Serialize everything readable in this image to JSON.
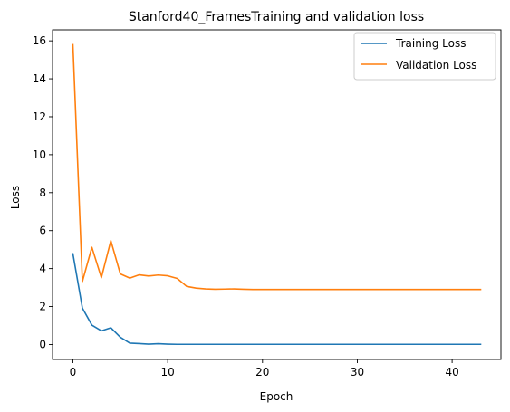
{
  "chart_data": {
    "type": "line",
    "title": "Stanford40_FramesTraining and validation loss",
    "xlabel": "Epoch",
    "ylabel": "Loss",
    "xlim": [
      -2.15,
      45.15
    ],
    "ylim": [
      -0.79,
      16.58
    ],
    "xticks": [
      0,
      10,
      20,
      30,
      40
    ],
    "yticks": [
      0,
      2,
      4,
      6,
      8,
      10,
      12,
      14,
      16
    ],
    "grid": false,
    "legend_position": "top-right",
    "series": [
      {
        "name": "Training Loss",
        "color": "#1f77b4",
        "x": [
          0,
          1,
          2,
          3,
          4,
          5,
          6,
          7,
          8,
          9,
          10,
          11,
          12,
          13,
          14,
          15,
          16,
          17,
          18,
          19,
          20,
          21,
          22,
          23,
          24,
          25,
          26,
          27,
          28,
          29,
          30,
          31,
          32,
          33,
          34,
          35,
          36,
          37,
          38,
          39,
          40,
          41,
          42,
          43
        ],
        "values": [
          4.78,
          1.92,
          1.02,
          0.72,
          0.88,
          0.38,
          0.07,
          0.05,
          0.02,
          0.04,
          0.02,
          0.01,
          0.01,
          0.01,
          0.01,
          0.01,
          0.01,
          0.01,
          0.01,
          0.01,
          0.01,
          0.01,
          0.01,
          0.01,
          0.01,
          0.01,
          0.01,
          0.01,
          0.01,
          0.01,
          0.01,
          0.01,
          0.01,
          0.01,
          0.01,
          0.01,
          0.01,
          0.01,
          0.01,
          0.01,
          0.01,
          0.01,
          0.01,
          0.01
        ]
      },
      {
        "name": "Validation Loss",
        "color": "#ff7f0e",
        "x": [
          0,
          1,
          2,
          3,
          4,
          5,
          6,
          7,
          8,
          9,
          10,
          11,
          12,
          13,
          14,
          15,
          16,
          17,
          18,
          19,
          20,
          21,
          22,
          23,
          24,
          25,
          26,
          27,
          28,
          29,
          30,
          31,
          32,
          33,
          34,
          35,
          36,
          37,
          38,
          39,
          40,
          41,
          42,
          43
        ],
        "values": [
          15.8,
          3.32,
          5.12,
          3.52,
          5.47,
          3.72,
          3.5,
          3.67,
          3.61,
          3.66,
          3.62,
          3.48,
          3.06,
          2.97,
          2.93,
          2.91,
          2.92,
          2.93,
          2.91,
          2.9,
          2.9,
          2.9,
          2.9,
          2.9,
          2.9,
          2.9,
          2.9,
          2.9,
          2.9,
          2.9,
          2.9,
          2.9,
          2.9,
          2.9,
          2.9,
          2.9,
          2.9,
          2.9,
          2.9,
          2.9,
          2.9,
          2.9,
          2.9,
          2.9
        ]
      }
    ]
  }
}
